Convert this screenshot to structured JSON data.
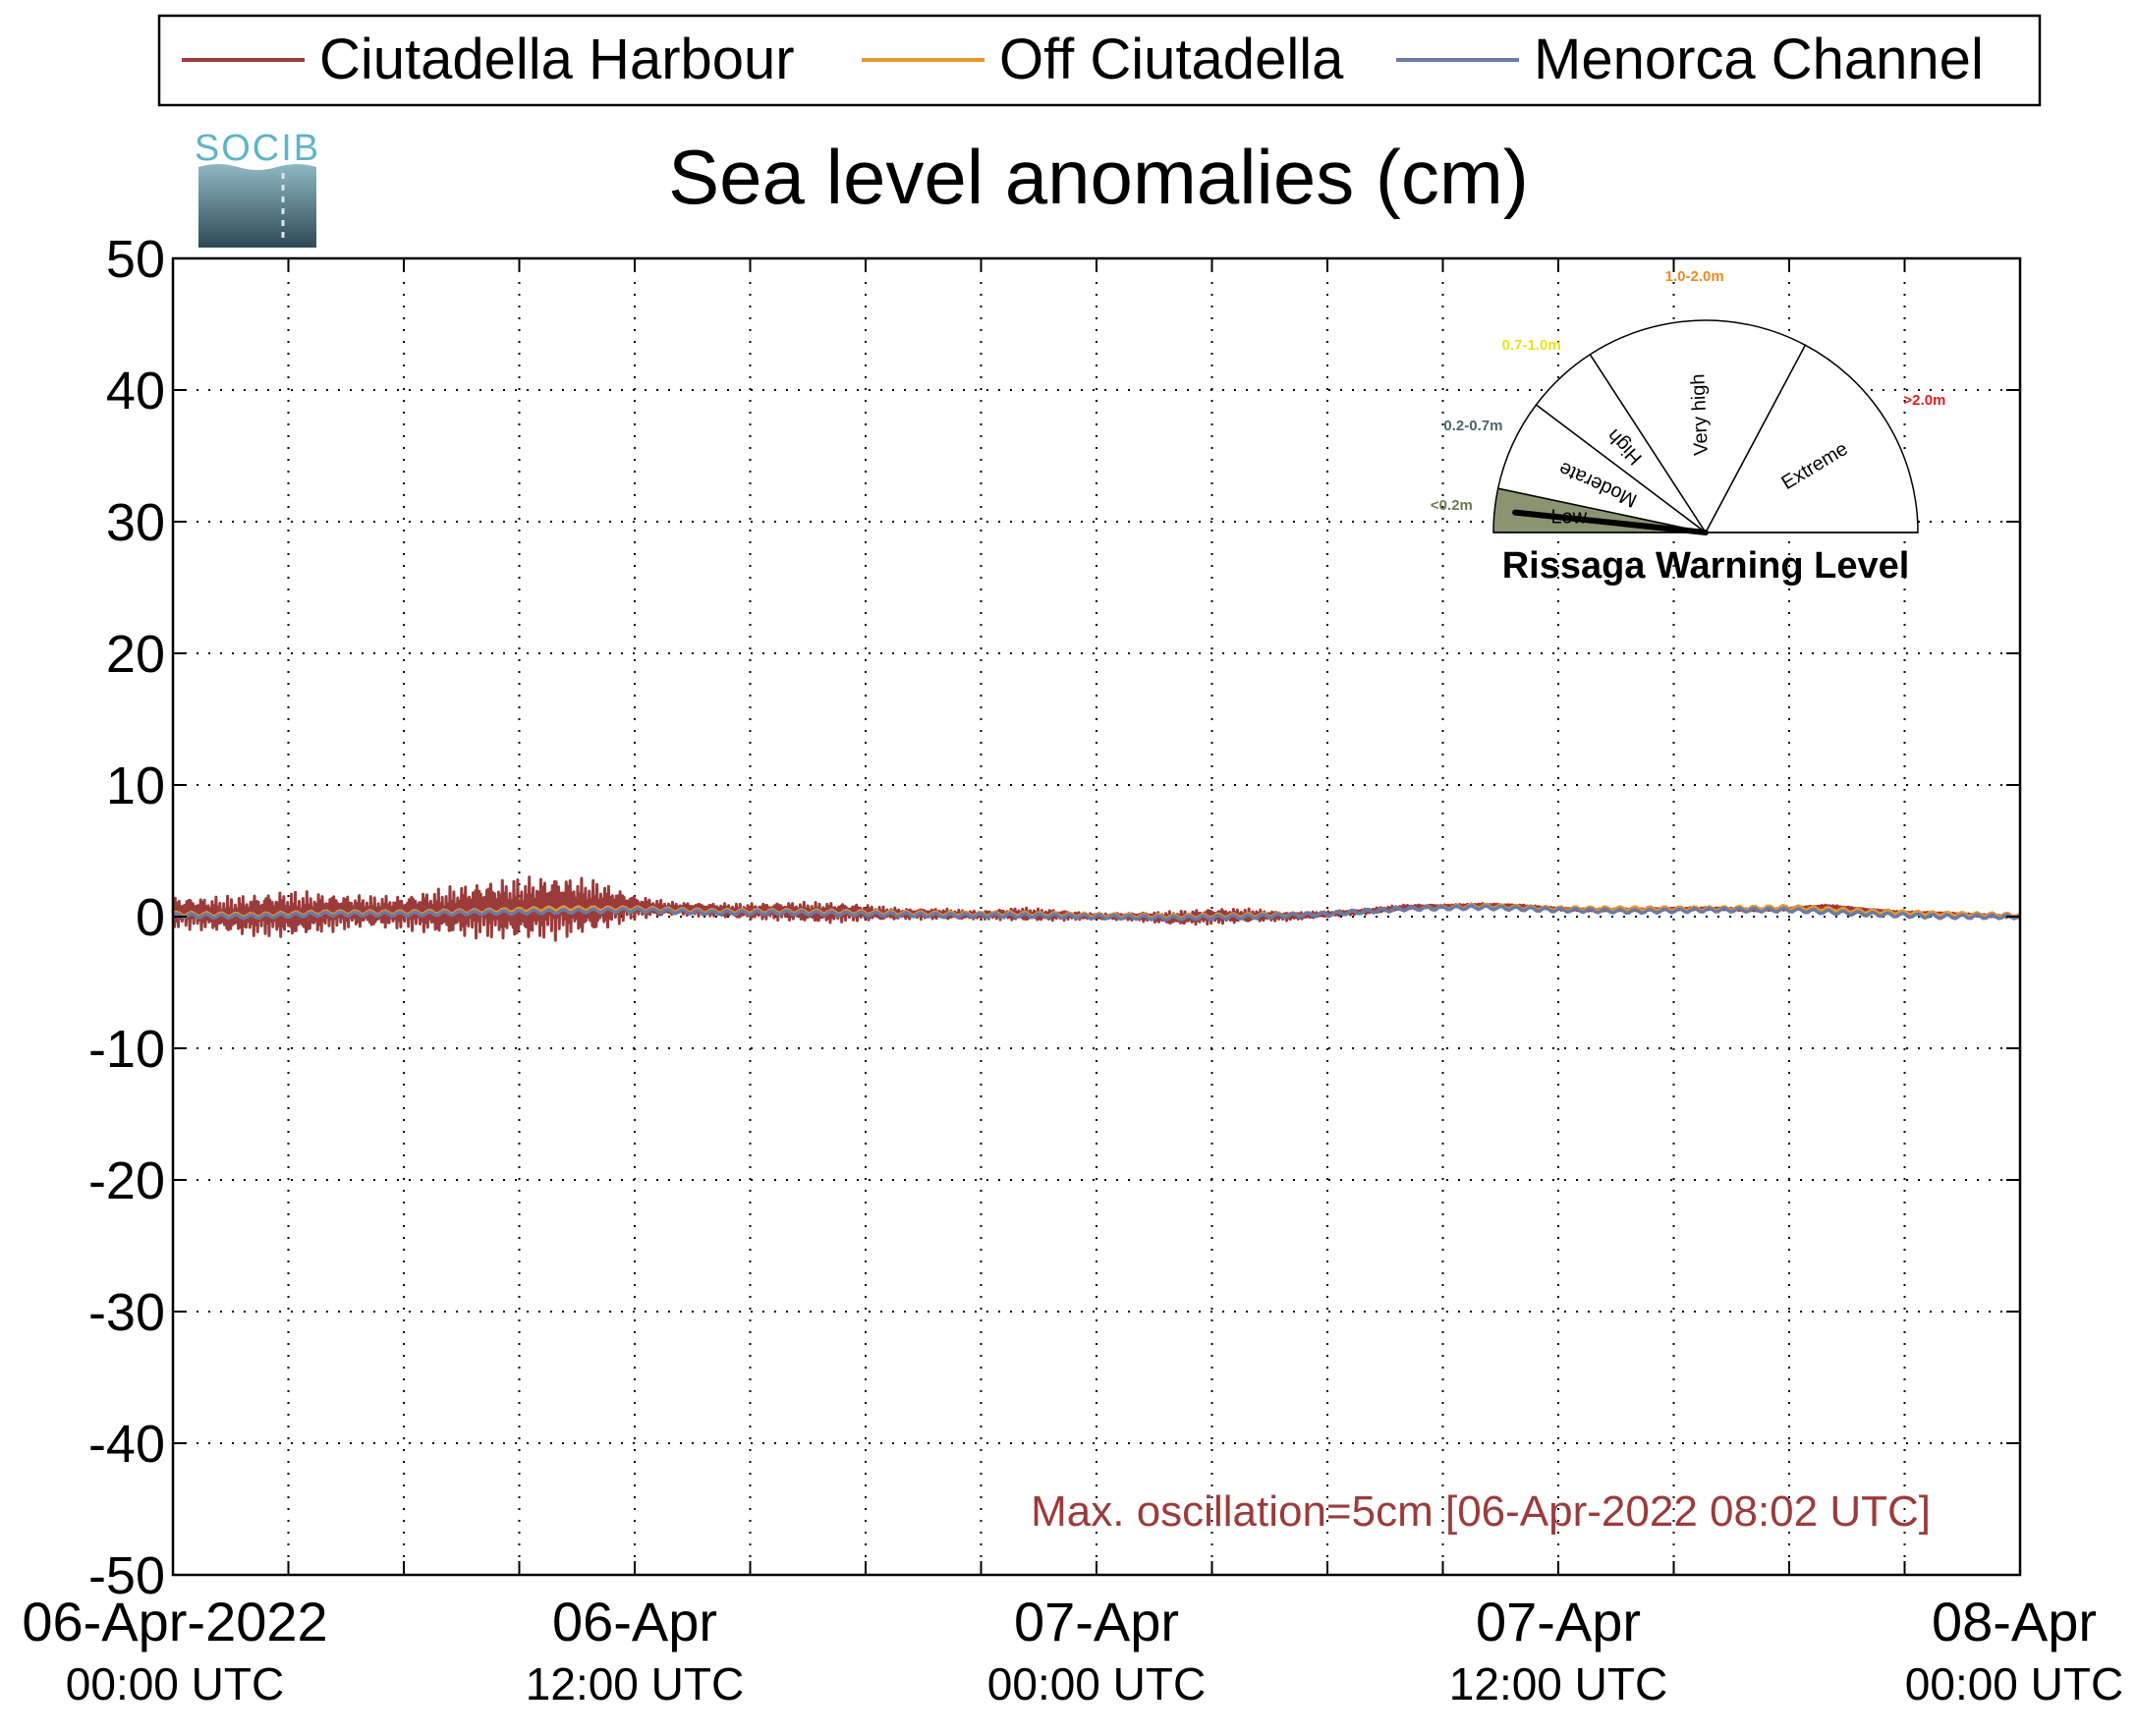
{
  "logo": {
    "text": "SOCIB"
  },
  "chart_data": {
    "type": "line",
    "title": "Sea level anomalies (cm)",
    "xlabel": "",
    "ylabel": "",
    "ylim": [
      -50,
      50
    ],
    "yticks": [
      50,
      40,
      30,
      20,
      10,
      0,
      -10,
      -20,
      -30,
      -40,
      -50
    ],
    "x_range_hours": [
      0,
      48
    ],
    "grid": true,
    "legend_position": "top",
    "xtick_labels": [
      {
        "hour": 0,
        "date": "06-Apr-2022",
        "time": "00:00 UTC"
      },
      {
        "hour": 12,
        "date": "06-Apr",
        "time": "12:00 UTC"
      },
      {
        "hour": 24,
        "date": "07-Apr",
        "time": "00:00 UTC"
      },
      {
        "hour": 36,
        "date": "07-Apr",
        "time": "12:00 UTC"
      },
      {
        "hour": 48,
        "date": "08-Apr",
        "time": "00:00 UTC"
      }
    ],
    "series": [
      {
        "name": "Ciutadella Harbour",
        "color": "#9b3b3b",
        "x": [
          0,
          1,
          2,
          3,
          4,
          5,
          6,
          7,
          8,
          9,
          10,
          11,
          12,
          13,
          14,
          15,
          16,
          17,
          18,
          19,
          20,
          21,
          22,
          23,
          24,
          25,
          26,
          27,
          28,
          29,
          30,
          31,
          32,
          33,
          34,
          35,
          36,
          37,
          38,
          39,
          40,
          41,
          42,
          43,
          44,
          45,
          46,
          47,
          48
        ],
        "mean": [
          0.3,
          0.2,
          0.1,
          0.2,
          0.3,
          0.4,
          0.3,
          0.4,
          0.5,
          0.6,
          0.7,
          0.8,
          0.7,
          0.6,
          0.5,
          0.4,
          0.4,
          0.3,
          0.3,
          0.2,
          0.2,
          0.1,
          0.2,
          0.1,
          0.0,
          0.0,
          -0.1,
          0.0,
          0.1,
          0.0,
          0.2,
          0.4,
          0.7,
          0.8,
          0.9,
          0.8,
          0.6,
          0.5,
          0.5,
          0.6,
          0.6,
          0.5,
          0.6,
          0.8,
          0.5,
          0.3,
          0.2,
          0.1,
          0.0
        ],
        "amplitude": [
          1.2,
          1.3,
          1.6,
          1.8,
          1.5,
          1.2,
          1.3,
          1.8,
          2.2,
          2.4,
          2.5,
          2.0,
          0.9,
          0.5,
          0.5,
          0.6,
          0.7,
          0.8,
          0.6,
          0.4,
          0.4,
          0.3,
          0.5,
          0.4,
          0.2,
          0.3,
          0.5,
          0.6,
          0.5,
          0.3,
          0.2,
          0.2,
          0.2,
          0.1,
          0.1,
          0.1,
          0.1,
          0.1,
          0.1,
          0.1,
          0.1,
          0.1,
          0.1,
          0.1,
          0.1,
          0.1,
          0.1,
          0.1,
          0.1
        ]
      },
      {
        "name": "Off Ciutadella",
        "color": "#e8952e",
        "x": [
          0,
          2,
          4,
          6,
          8,
          10,
          12,
          14,
          16,
          18,
          20,
          22,
          24,
          26,
          28,
          30,
          32,
          34,
          36,
          38,
          40,
          42,
          44,
          46,
          48
        ],
        "values": [
          0.2,
          0.1,
          0.3,
          0.3,
          0.4,
          0.6,
          0.6,
          0.4,
          0.4,
          0.3,
          0.2,
          0.2,
          0.1,
          0.0,
          0.1,
          0.2,
          0.6,
          0.8,
          0.6,
          0.6,
          0.6,
          0.7,
          0.4,
          0.2,
          0.1
        ]
      },
      {
        "name": "Menorca Channel",
        "color": "#6a7ba4",
        "x": [
          0,
          2,
          4,
          6,
          8,
          10,
          12,
          14,
          16,
          18,
          20,
          22,
          24,
          26,
          28,
          30,
          32,
          34,
          36,
          38,
          40,
          42,
          44,
          46,
          48
        ],
        "values": [
          0.1,
          0.0,
          0.2,
          0.2,
          0.3,
          0.4,
          0.5,
          0.3,
          0.3,
          0.2,
          0.1,
          0.1,
          0.0,
          -0.1,
          0.0,
          0.2,
          0.6,
          0.7,
          0.5,
          0.4,
          0.5,
          0.5,
          0.2,
          0.0,
          0.0
        ]
      }
    ],
    "annotation": "Max. oscillation=5cm [06-Apr-2022 08:02 UTC]",
    "annotation_color": "#9b3b3b"
  },
  "gauge": {
    "title": "Rissaga Warning Level",
    "current_level": "Low",
    "segments": [
      {
        "name": "Low",
        "range": "<0.2m",
        "range_color": "#6b7a4e",
        "fill": "#8a9471"
      },
      {
        "name": "Moderate",
        "range": "0.2-0.7m",
        "range_color": "#4a6670",
        "fill": "#ffffff"
      },
      {
        "name": "High",
        "range": "0.7-1.0m",
        "range_color": "#e8e31a",
        "fill": "#ffffff"
      },
      {
        "name": "Very high",
        "range": "1.0-2.0m",
        "range_color": "#f08a1c",
        "fill": "#ffffff"
      },
      {
        "name": "Extreme",
        "range": ">2.0m",
        "range_color": "#e02020",
        "fill": "#ffffff"
      }
    ]
  }
}
